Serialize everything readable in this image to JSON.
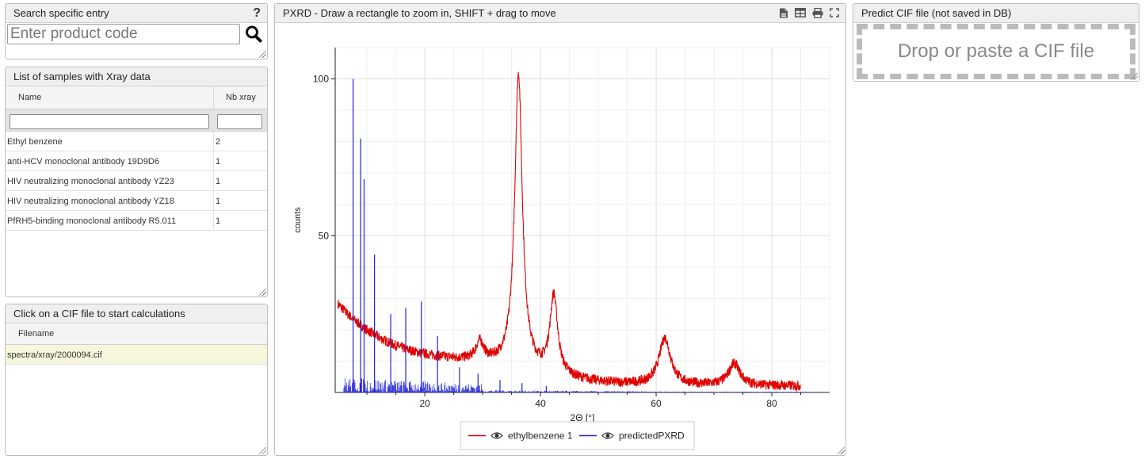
{
  "search": {
    "title": "Search specific entry",
    "help": "?",
    "placeholder": "Enter product code"
  },
  "samples": {
    "title": "List of samples with Xray data",
    "col_name": "Name",
    "col_nb": "Nb xray",
    "rows": [
      {
        "name": "Ethyl benzene",
        "nb": "2"
      },
      {
        "name": "anti-HCV monoclonal antibody 19D9D6",
        "nb": "1"
      },
      {
        "name": "HIV neutralizing monoclonal antibody YZ23",
        "nb": "1"
      },
      {
        "name": "HIV neutralizing monoclonal antibody YZ18",
        "nb": "1"
      },
      {
        "name": "PfRH5-binding monoclonal antibody R5.011",
        "nb": "1"
      }
    ]
  },
  "cif": {
    "title": "Click on a CIF file to start calculations",
    "col_filename": "Filename",
    "rows": [
      {
        "filename": "spectra/xray/2000094.cif"
      }
    ]
  },
  "chart_panel": {
    "title": "PXRD - Draw a rectangle to zoom in, SHIFT + drag to move",
    "icons": [
      "export-icon",
      "table-icon",
      "print-icon",
      "fullscreen-icon"
    ]
  },
  "predict": {
    "title": "Predict CIF file (not saved in DB)",
    "dropzone": "Drop or paste a CIF file"
  },
  "chart_data": {
    "type": "line",
    "xlabel": "2Θ [°]",
    "ylabel": "counts",
    "xlim": [
      4.5,
      90
    ],
    "ylim": [
      0,
      110
    ],
    "xticks": [
      20,
      40,
      60,
      80
    ],
    "yticks": [
      50,
      100
    ],
    "grid": true,
    "legend_position": "bottom-center",
    "series": [
      {
        "name": "ethylbenzene 1",
        "color": "#e00000",
        "baseline": {
          "x_start": 5,
          "x_end": 85,
          "start_level": 28,
          "end_level": 2
        },
        "peaks": [
          {
            "x": 29.5,
            "y": 12
          },
          {
            "x": 36.2,
            "y": 100
          },
          {
            "x": 42.3,
            "y": 31
          },
          {
            "x": 61.5,
            "y": 21
          },
          {
            "x": 73.5,
            "y": 13
          },
          {
            "x": 76.5,
            "y": 6
          }
        ]
      },
      {
        "name": "predictedPXRD",
        "color": "#2020e0",
        "sticks": [
          {
            "x": 7.6,
            "y": 100
          },
          {
            "x": 8.9,
            "y": 81
          },
          {
            "x": 9.5,
            "y": 68
          },
          {
            "x": 11.3,
            "y": 44
          },
          {
            "x": 14.1,
            "y": 25
          },
          {
            "x": 16.7,
            "y": 27
          },
          {
            "x": 19.4,
            "y": 29
          },
          {
            "x": 22.2,
            "y": 18
          },
          {
            "x": 26.0,
            "y": 8
          },
          {
            "x": 29.2,
            "y": 6
          },
          {
            "x": 33.0,
            "y": 4
          },
          {
            "x": 36.8,
            "y": 3
          },
          {
            "x": 41.0,
            "y": 2
          }
        ]
      }
    ]
  }
}
